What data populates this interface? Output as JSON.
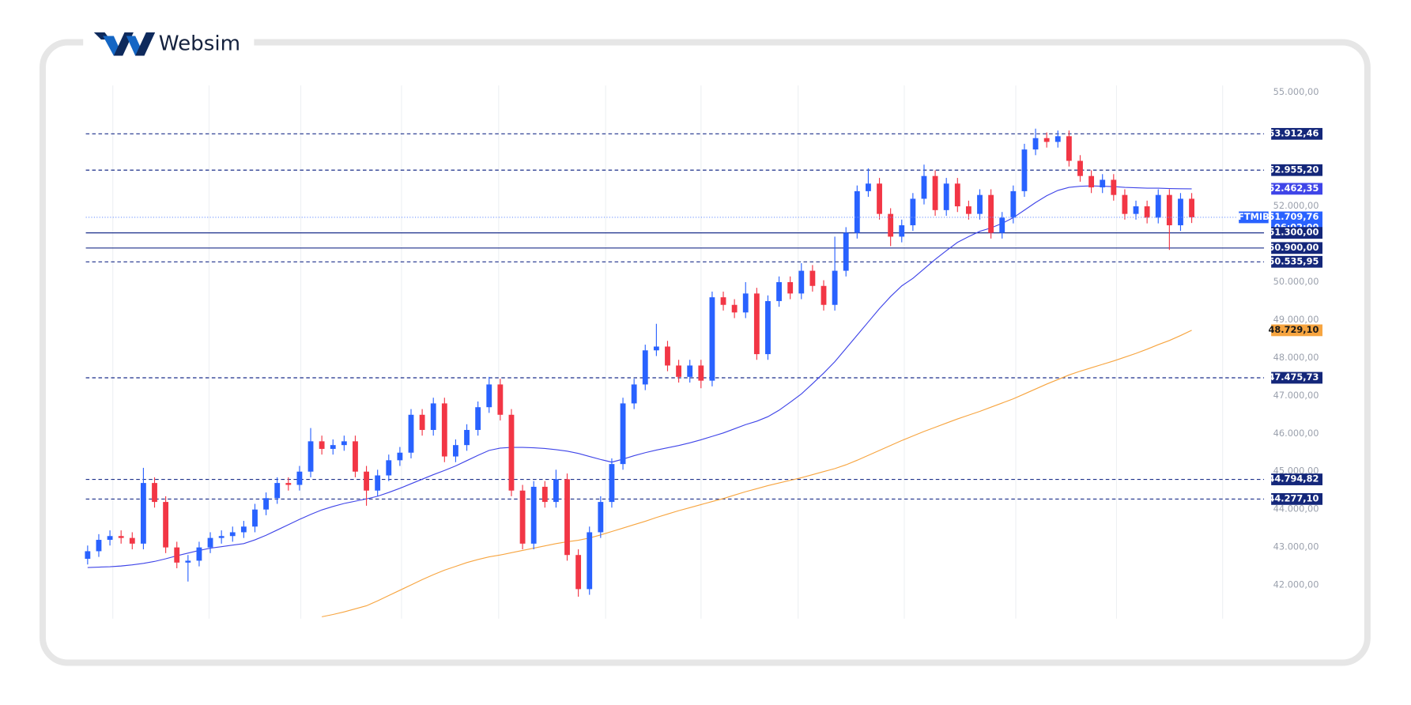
{
  "brand": "Websim",
  "chart_data": {
    "type": "candlestick",
    "symbol": "FTMIB",
    "up_color": "#2962ff",
    "down_color": "#f23645",
    "ylim": [
      41120,
      55190
    ],
    "yticks": [
      {
        "value": 55000,
        "label": "55.000,00"
      },
      {
        "value": 52000,
        "label": "52.000,00"
      },
      {
        "value": 50000,
        "label": "50.000,00"
      },
      {
        "value": 49000,
        "label": "49.000,00"
      },
      {
        "value": 48000,
        "label": "48.000,00"
      },
      {
        "value": 47000,
        "label": "47.000,00"
      },
      {
        "value": 46000,
        "label": "46.000,00"
      },
      {
        "value": 45000,
        "label": "45.000,00"
      },
      {
        "value": 44000,
        "label": "44.000,00"
      },
      {
        "value": 43000,
        "label": "43.000,00"
      },
      {
        "value": 42000,
        "label": "42.000,00"
      }
    ],
    "open": [
      42700,
      42900,
      43200,
      43300,
      43250,
      43100,
      44700,
      44200,
      43000,
      42600,
      42650,
      43000,
      43250,
      43300,
      43400,
      43550,
      44000,
      44300,
      44700,
      44650,
      45000,
      45800,
      45600,
      45700,
      45800,
      45000,
      44500,
      44900,
      45300,
      45500,
      46500,
      46100,
      46800,
      45400,
      45700,
      46100,
      46700,
      47300,
      46500,
      44500,
      43100,
      44600,
      44200,
      44800,
      42800,
      41900,
      43400,
      44200,
      45200,
      46800,
      47300,
      48200,
      48300,
      47800,
      47500,
      47800,
      47400,
      49600,
      49400,
      49200,
      49700,
      48100,
      49500,
      50000,
      49700,
      50300,
      49900,
      49400,
      50300,
      51300,
      52400,
      52600,
      51800,
      51200,
      51500,
      52200,
      52800,
      51900,
      52600,
      52000,
      51800,
      52300,
      51300,
      51700,
      52400,
      53500,
      53800,
      53700,
      53850,
      53200,
      52800,
      52500,
      52700,
      52300,
      51800,
      52000,
      51700,
      52300,
      51500,
      52200
    ],
    "high": [
      43050,
      43350,
      43450,
      43450,
      43400,
      45100,
      44850,
      44350,
      43150,
      42800,
      43150,
      43400,
      43450,
      43550,
      43700,
      44150,
      44450,
      44850,
      44850,
      45150,
      46150,
      45950,
      45850,
      45950,
      45950,
      45150,
      45050,
      45450,
      45650,
      46650,
      46650,
      46950,
      46950,
      45850,
      46250,
      46850,
      47500,
      47450,
      46650,
      44650,
      44750,
      44750,
      45050,
      44950,
      42950,
      43550,
      44350,
      45350,
      46950,
      47450,
      48350,
      48900,
      48450,
      47950,
      47950,
      47950,
      49750,
      49750,
      49550,
      50000,
      49850,
      49650,
      50150,
      50150,
      50500,
      50450,
      50050,
      51200,
      51450,
      52550,
      53000,
      52750,
      51950,
      51650,
      52350,
      53100,
      52950,
      52750,
      52750,
      52150,
      52450,
      52450,
      51850,
      52550,
      53650,
      54050,
      53950,
      54000,
      54000,
      53350,
      52950,
      52850,
      52850,
      52450,
      52150,
      52150,
      52450,
      52450,
      52350,
      52350
    ],
    "low": [
      42550,
      42750,
      43050,
      43100,
      42950,
      42950,
      44050,
      42850,
      42450,
      42100,
      42500,
      42850,
      43100,
      43150,
      43250,
      43400,
      43850,
      44150,
      44500,
      44500,
      44850,
      45450,
      45450,
      45550,
      44850,
      44100,
      44350,
      44750,
      45150,
      45350,
      45950,
      45950,
      45250,
      45250,
      45550,
      45950,
      46550,
      46350,
      44350,
      42950,
      42950,
      44050,
      44050,
      42650,
      41700,
      41750,
      43250,
      44050,
      45050,
      46650,
      47150,
      48050,
      47650,
      47350,
      47350,
      47200,
      47250,
      49250,
      49050,
      49050,
      47950,
      47950,
      49350,
      49550,
      49550,
      49750,
      49250,
      49250,
      50150,
      51150,
      52250,
      51650,
      50950,
      51050,
      51350,
      52050,
      51750,
      51750,
      51850,
      51650,
      51650,
      51150,
      51150,
      51550,
      52250,
      53350,
      53550,
      53550,
      53050,
      52650,
      52350,
      52350,
      52150,
      51650,
      51650,
      51550,
      51550,
      50850,
      51350,
      51560
    ],
    "close": [
      42900,
      43200,
      43300,
      43250,
      43100,
      44700,
      44200,
      43000,
      42600,
      42650,
      43000,
      43250,
      43300,
      43400,
      43550,
      44000,
      44300,
      44700,
      44650,
      45000,
      45800,
      45600,
      45700,
      45800,
      45000,
      44500,
      44900,
      45300,
      45500,
      46500,
      46100,
      46800,
      45400,
      45700,
      46100,
      46700,
      47300,
      46500,
      44500,
      43100,
      44600,
      44200,
      44800,
      42800,
      41900,
      43400,
      44200,
      45200,
      46800,
      47300,
      48200,
      48300,
      47800,
      47500,
      47800,
      47400,
      49600,
      49400,
      49200,
      49700,
      48100,
      49500,
      50000,
      49700,
      50300,
      49900,
      49400,
      50300,
      51300,
      52400,
      52600,
      51800,
      51200,
      51500,
      52200,
      52800,
      51900,
      52600,
      52000,
      51800,
      52300,
      51300,
      51700,
      52400,
      53500,
      53800,
      53700,
      53850,
      53200,
      52800,
      52500,
      52700,
      52300,
      51800,
      52000,
      51700,
      52300,
      51500,
      52200,
      51709.76
    ],
    "lines": [
      {
        "color": "#3f45e8",
        "values": [
          42470,
          42480,
          42490,
          42510,
          42540,
          42580,
          42630,
          42700,
          42780,
          42850,
          42920,
          42980,
          43020,
          43060,
          43100,
          43200,
          43320,
          43460,
          43600,
          43740,
          43870,
          43990,
          44080,
          44160,
          44220,
          44280,
          44350,
          44450,
          44560,
          44680,
          44800,
          44920,
          45030,
          45150,
          45290,
          45430,
          45560,
          45620,
          45640,
          45640,
          45630,
          45610,
          45580,
          45540,
          45480,
          45400,
          45320,
          45250,
          45330,
          45420,
          45500,
          45570,
          45630,
          45690,
          45760,
          45840,
          45930,
          46020,
          46130,
          46240,
          46330,
          46450,
          46620,
          46830,
          47050,
          47320,
          47600,
          47900,
          48250,
          48600,
          48950,
          49300,
          49620,
          49900,
          50100,
          50350,
          50600,
          50830,
          51050,
          51200,
          51340,
          51430,
          51550,
          51700,
          51900,
          52100,
          52280,
          52420,
          52500,
          52530,
          52540,
          52530,
          52520,
          52500,
          52490,
          52480,
          52480,
          52470,
          52465,
          52462.35
        ],
        "end_label": {
          "value": 52462.35,
          "label": "52.462,35"
        }
      },
      {
        "color": "#f7a540",
        "values": [
          null,
          null,
          null,
          null,
          null,
          null,
          null,
          null,
          null,
          null,
          null,
          null,
          null,
          null,
          null,
          null,
          null,
          null,
          null,
          null,
          null,
          41170,
          41230,
          41300,
          41380,
          41460,
          41590,
          41730,
          41870,
          42010,
          42150,
          42280,
          42400,
          42500,
          42600,
          42680,
          42750,
          42800,
          42860,
          42920,
          42980,
          43040,
          43100,
          43150,
          43190,
          43250,
          43330,
          43420,
          43510,
          43600,
          43690,
          43790,
          43880,
          43970,
          44050,
          44130,
          44210,
          44290,
          44380,
          44470,
          44550,
          44630,
          44700,
          44770,
          44840,
          44920,
          45000,
          45080,
          45180,
          45300,
          45430,
          45560,
          45690,
          45820,
          45940,
          46060,
          46170,
          46280,
          46390,
          46490,
          46590,
          46700,
          46810,
          46920,
          47050,
          47180,
          47310,
          47430,
          47550,
          47650,
          47740,
          47830,
          47920,
          48020,
          48120,
          48230,
          48350,
          48460,
          48590,
          48729.1
        ],
        "end_label": {
          "value": 48729.1,
          "label": "48.729,10"
        }
      }
    ],
    "hlines": [
      {
        "value": 53912.46,
        "label": "53.912,46",
        "style": "dashed"
      },
      {
        "value": 52955.2,
        "label": "52.955,20",
        "style": "dashed"
      },
      {
        "value": 51300,
        "label": "51.300,00",
        "style": "solid"
      },
      {
        "value": 50900,
        "label": "50.900,00",
        "style": "solid"
      },
      {
        "value": 50535.95,
        "label": "50.535,95",
        "style": "dashed"
      },
      {
        "value": 47475.73,
        "label": "47.475,73",
        "style": "dashed"
      },
      {
        "value": 44794.82,
        "label": "44.794,82",
        "style": "dashed"
      },
      {
        "value": 44277.1,
        "label": "44.277,10",
        "style": "dashed"
      }
    ],
    "last_price": {
      "value": 51709.76,
      "label": "51.709,76",
      "countdown": "06:02:00"
    }
  }
}
